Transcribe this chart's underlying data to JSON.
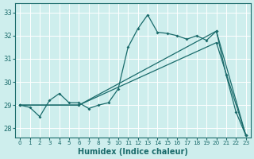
{
  "xlabel": "Humidex (Indice chaleur)",
  "bg_color": "#ceeeed",
  "grid_color": "#ffffff",
  "line_color": "#1a6b6b",
  "xlim": [
    -0.5,
    23.5
  ],
  "ylim": [
    27.6,
    33.4
  ],
  "yticks": [
    28,
    29,
    30,
    31,
    32,
    33
  ],
  "xticks": [
    0,
    1,
    2,
    3,
    4,
    5,
    6,
    7,
    8,
    9,
    10,
    11,
    12,
    13,
    14,
    15,
    16,
    17,
    18,
    19,
    20,
    21,
    22,
    23
  ],
  "series": [
    {
      "x": [
        0,
        1,
        2,
        3,
        4,
        5,
        6,
        7,
        8,
        9,
        10,
        11,
        12,
        13,
        14,
        15,
        16,
        17,
        18,
        19,
        20,
        21,
        22,
        23
      ],
      "y": [
        29.0,
        28.9,
        28.5,
        29.2,
        29.5,
        29.1,
        29.1,
        28.85,
        29.0,
        29.1,
        29.7,
        31.5,
        32.3,
        32.9,
        32.15,
        32.1,
        32.0,
        31.85,
        32.0,
        31.8,
        32.2,
        30.3,
        28.7,
        27.7
      ]
    },
    {
      "x": [
        0,
        6,
        20,
        23
      ],
      "y": [
        29.0,
        29.0,
        32.2,
        27.7
      ]
    },
    {
      "x": [
        0,
        6,
        20,
        23
      ],
      "y": [
        29.0,
        29.0,
        31.7,
        27.7
      ]
    }
  ]
}
